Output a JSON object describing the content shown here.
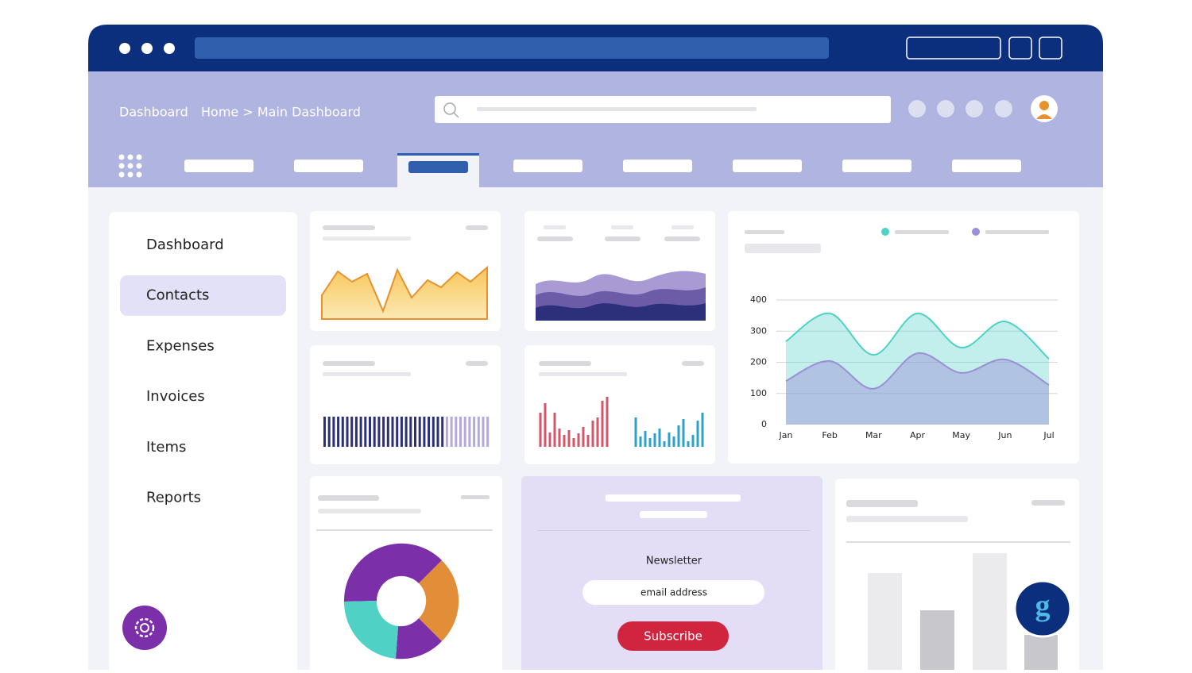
{
  "header": {
    "breadcrumb_title": "Dashboard",
    "breadcrumb_path": "Home > Main Dashboard"
  },
  "sidebar": {
    "items": [
      "Dashboard",
      "Contacts",
      "Expenses",
      "Invoices",
      "Items",
      "Reports"
    ],
    "active": 1
  },
  "newsletter": {
    "title": "Newsletter",
    "input_placeholder": "email address",
    "button": "Subscribe"
  },
  "chart_data": {
    "type": "area",
    "categories": [
      "Jan",
      "Feb",
      "Mar",
      "Apr",
      "May",
      "Jun",
      "Jul"
    ],
    "series": [
      {
        "color": "#4fd1c5",
        "values": [
          267,
          357,
          224,
          357,
          247,
          331,
          211
        ]
      },
      {
        "color": "#9b8fd6",
        "values": [
          140,
          204,
          115,
          229,
          166,
          209,
          127
        ]
      }
    ],
    "ylim": [
      0,
      400
    ],
    "yticks": [
      0,
      100,
      200,
      300,
      400
    ],
    "grid": true
  }
}
